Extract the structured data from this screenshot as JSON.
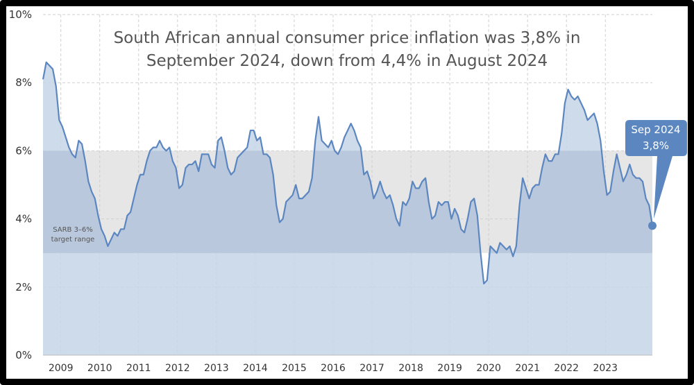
{
  "chart_data": {
    "type": "area",
    "title_lines": [
      "South African annual consumer price inflation was 3,8% in",
      "September 2024, down from 4,4% in August 2024"
    ],
    "ylim": [
      0,
      10
    ],
    "y_ticks": [
      "0%",
      "2%",
      "4%",
      "6%",
      "8%",
      "10%"
    ],
    "x_ticks": [
      "2009",
      "2010",
      "2011",
      "2012",
      "2013",
      "2014",
      "2015",
      "2016",
      "2017",
      "2018",
      "2019",
      "2020",
      "2021",
      "2022",
      "2023"
    ],
    "x_start": "2009-01",
    "x_end": "2024-09",
    "target_band": {
      "low": 3,
      "high": 6,
      "label_lines": [
        "SARB 3–6%",
        "target range"
      ]
    },
    "callout": {
      "label": "Sep 2024",
      "value": "3,8%"
    },
    "colors": {
      "line": "#5b86c0",
      "area": "#c5d5e8",
      "band": "#e6e6e6",
      "band_overlap": "#b9c8dc",
      "callout": "#5b86c0"
    },
    "values": [
      8.1,
      8.6,
      8.5,
      8.4,
      7.9,
      6.9,
      6.7,
      6.4,
      6.1,
      5.9,
      5.8,
      6.3,
      6.2,
      5.7,
      5.1,
      4.8,
      4.6,
      4.1,
      3.7,
      3.5,
      3.2,
      3.4,
      3.6,
      3.5,
      3.7,
      3.7,
      4.1,
      4.2,
      4.6,
      5.0,
      5.3,
      5.3,
      5.7,
      6.0,
      6.1,
      6.1,
      6.3,
      6.1,
      6.0,
      6.1,
      5.7,
      5.5,
      4.9,
      5.0,
      5.5,
      5.6,
      5.6,
      5.7,
      5.4,
      5.9,
      5.9,
      5.9,
      5.6,
      5.5,
      6.3,
      6.4,
      6.0,
      5.5,
      5.3,
      5.4,
      5.8,
      5.9,
      6.0,
      6.1,
      6.6,
      6.6,
      6.3,
      6.4,
      5.9,
      5.9,
      5.8,
      5.3,
      4.4,
      3.9,
      4.0,
      4.5,
      4.6,
      4.7,
      5.0,
      4.6,
      4.6,
      4.7,
      4.8,
      5.2,
      6.3,
      7.0,
      6.3,
      6.2,
      6.1,
      6.3,
      6.0,
      5.9,
      6.1,
      6.4,
      6.6,
      6.8,
      6.6,
      6.3,
      6.1,
      5.3,
      5.4,
      5.1,
      4.6,
      4.8,
      5.1,
      4.8,
      4.6,
      4.7,
      4.4,
      4.0,
      3.8,
      4.5,
      4.4,
      4.6,
      5.1,
      4.9,
      4.9,
      5.1,
      5.2,
      4.5,
      4.0,
      4.1,
      4.5,
      4.4,
      4.5,
      4.5,
      4.0,
      4.3,
      4.1,
      3.7,
      3.6,
      4.0,
      4.5,
      4.6,
      4.1,
      3.0,
      2.1,
      2.2,
      3.2,
      3.1,
      3.0,
      3.3,
      3.2,
      3.1,
      3.2,
      2.9,
      3.2,
      4.4,
      5.2,
      4.9,
      4.6,
      4.9,
      5.0,
      5.0,
      5.5,
      5.9,
      5.7,
      5.7,
      5.9,
      5.9,
      6.5,
      7.4,
      7.8,
      7.6,
      7.5,
      7.6,
      7.4,
      7.2,
      6.9,
      7.0,
      7.1,
      6.8,
      6.3,
      5.4,
      4.7,
      4.8,
      5.4,
      5.9,
      5.5,
      5.1,
      5.3,
      5.6,
      5.3,
      5.2,
      5.2,
      5.1,
      4.6,
      4.4,
      3.8
    ]
  }
}
